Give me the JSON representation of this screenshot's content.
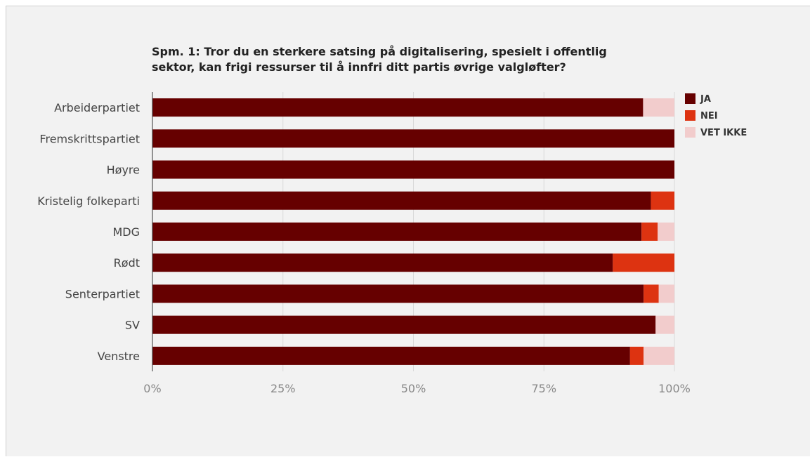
{
  "chart_data": {
    "type": "bar",
    "orientation": "horizontal",
    "stacked": true,
    "title_lines": [
      "Spm. 1: Tror du en sterkere satsing på digitalisering, spesielt i offentlig",
      "sektor, kan frigi ressurser til å innfri ditt partis øvrige valgløfter?"
    ],
    "categories": [
      "Arbeiderpartiet",
      "Fremskrittspartiet",
      "Høyre",
      "Kristelig folkeparti",
      "MDG",
      "Rødt",
      "Senterpartiet",
      "SV",
      "Venstre"
    ],
    "series": [
      {
        "name": "JA",
        "color": "#660000",
        "values": [
          94,
          100,
          100,
          95.5,
          93.7,
          88.2,
          94.1,
          96.4,
          91.5
        ]
      },
      {
        "name": "NEI",
        "color": "#dd3311",
        "values": [
          0,
          0,
          0,
          4.5,
          3.1,
          11.8,
          2.9,
          0,
          2.6
        ]
      },
      {
        "name": "VET IKKE",
        "color": "#f2cccc",
        "values": [
          6,
          0,
          0,
          0,
          3.2,
          0,
          3.0,
          3.6,
          5.9
        ]
      }
    ],
    "x_ticks": [
      "0%",
      "25%",
      "50%",
      "75%",
      "100%"
    ],
    "xlim": [
      0,
      100
    ],
    "grid": true,
    "legend_position": "top-right"
  }
}
